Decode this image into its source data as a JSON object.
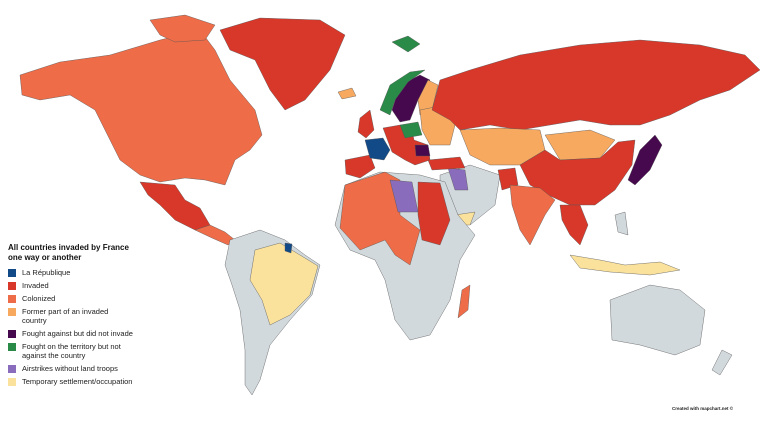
{
  "colors": {
    "la_republique": "#124a88",
    "invaded": "#d7382a",
    "colonized": "#ee6c47",
    "former_part": "#f7a960",
    "fought_against": "#46094d",
    "fought_on_territory": "#2a8a48",
    "airstrikes": "#8a6cbd",
    "temporary": "#fbe29c",
    "none": "#d2d9dd"
  },
  "legend": {
    "title": "All countries invaded by France one way or another",
    "items": [
      {
        "label": "La République",
        "color": "#124a88"
      },
      {
        "label": "Invaded",
        "color": "#d7382a"
      },
      {
        "label": "Colonized",
        "color": "#ee6c47"
      },
      {
        "label": "Former part of an invaded country",
        "color": "#f7a960"
      },
      {
        "label": "Fought against but did not invade",
        "color": "#46094d"
      },
      {
        "label": "Fought on the territory but not against the country",
        "color": "#2a8a48"
      },
      {
        "label": "Airstrikes without land troops",
        "color": "#8a6cbd"
      },
      {
        "label": "Temporary settlement/occupation",
        "color": "#fbe29c"
      }
    ]
  },
  "credit": "Created with mapchart.net ©"
}
